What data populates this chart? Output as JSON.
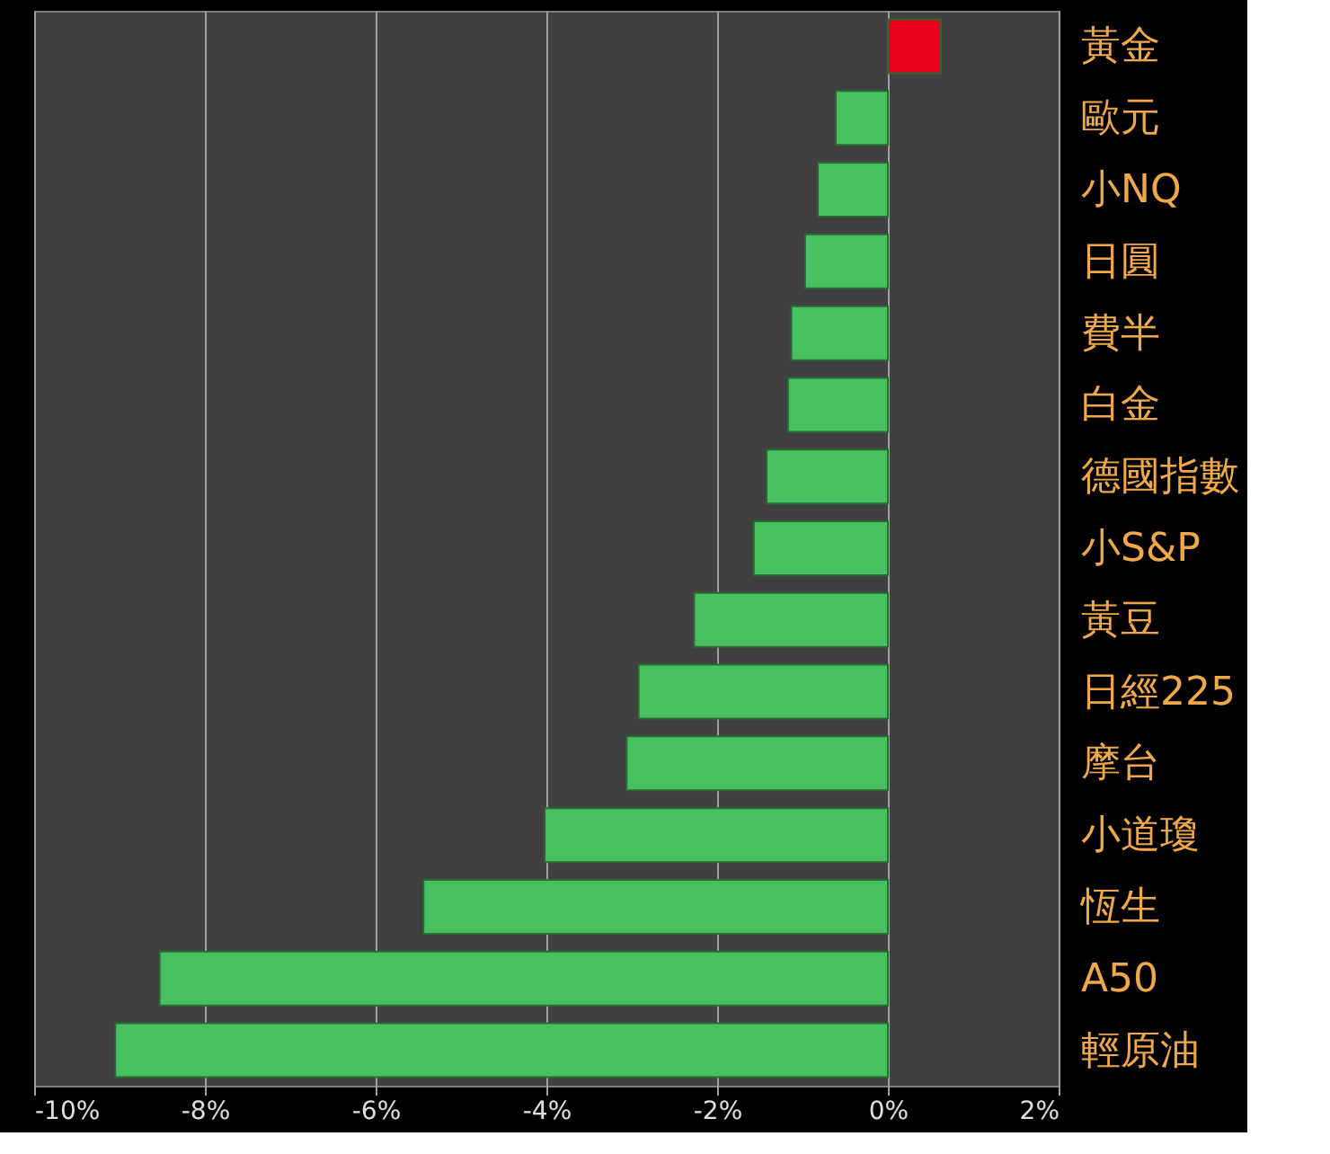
{
  "chart_data": {
    "type": "bar",
    "orientation": "horizontal",
    "categories": [
      "黃金",
      "歐元",
      "小NQ",
      "日圓",
      "費半",
      "白金",
      "德國指數",
      "小S&P",
      "黃豆",
      "日經225",
      "摩台",
      "小道瓊",
      "恆生",
      "A50",
      "輕原油"
    ],
    "values": [
      0.62,
      -0.61,
      -0.82,
      -0.97,
      -1.13,
      -1.17,
      -1.42,
      -1.57,
      -2.27,
      -2.92,
      -3.06,
      -4.02,
      -5.44,
      -8.53,
      -9.05
    ],
    "colors": [
      "#e8001c",
      "#48c060",
      "#48c060",
      "#48c060",
      "#48c060",
      "#48c060",
      "#48c060",
      "#48c060",
      "#48c060",
      "#48c060",
      "#48c060",
      "#48c060",
      "#48c060",
      "#48c060",
      "#48c060"
    ],
    "xlim": [
      -10,
      2
    ],
    "xticks": [
      {
        "value": -10,
        "label": "-10%"
      },
      {
        "value": -8,
        "label": "-8%"
      },
      {
        "value": -6,
        "label": "-6%"
      },
      {
        "value": -4,
        "label": "-4%"
      },
      {
        "value": -2,
        "label": "-2%"
      },
      {
        "value": 0,
        "label": "0%"
      },
      {
        "value": 2,
        "label": "2%"
      }
    ],
    "grid": "x"
  }
}
